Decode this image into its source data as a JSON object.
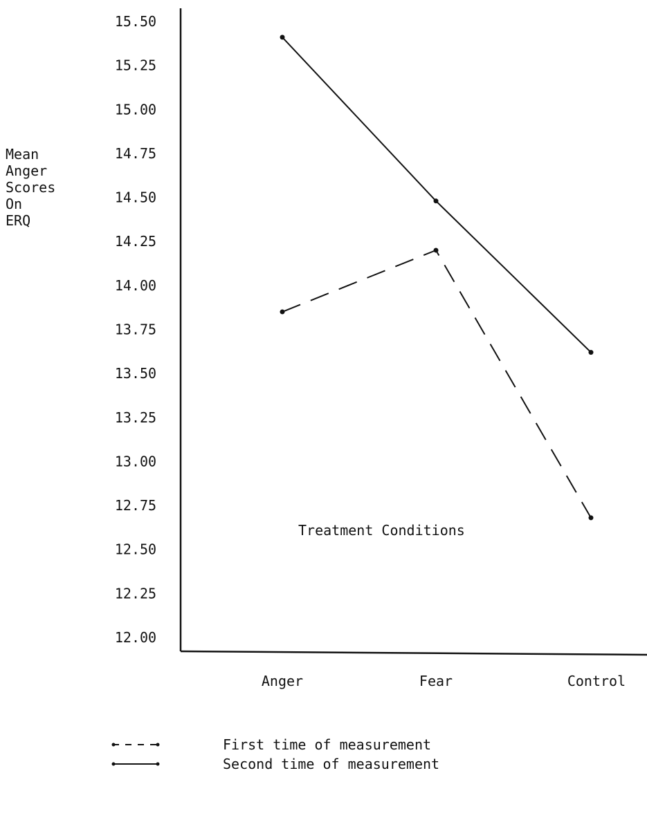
{
  "chart_data": {
    "type": "line",
    "categories": [
      "Anger",
      "Fear",
      "Control"
    ],
    "series": [
      {
        "name": "First time of measurement",
        "values": [
          13.85,
          14.2,
          12.68
        ],
        "style": "dashed"
      },
      {
        "name": "Second time of measurement",
        "values": [
          15.41,
          14.48,
          13.62
        ],
        "style": "solid"
      }
    ],
    "y_ticks": [
      "12.00",
      "12.25",
      "12.50",
      "12.75",
      "13.00",
      "13.25",
      "13.50",
      "13.75",
      "14.00",
      "14.25",
      "14.50",
      "14.75",
      "15.00",
      "15.25",
      "15.50"
    ],
    "ylim": [
      12.0,
      15.5
    ],
    "xlabel": "Treatment Conditions",
    "ylabel_lines": [
      "Mean",
      "Anger",
      "Scores",
      "On",
      "ERQ"
    ],
    "legend": [
      {
        "label": "First time of measurement",
        "style": "dashed"
      },
      {
        "label": "Second time of measurement",
        "style": "solid"
      }
    ],
    "grid": false,
    "legend_position": "bottom"
  }
}
